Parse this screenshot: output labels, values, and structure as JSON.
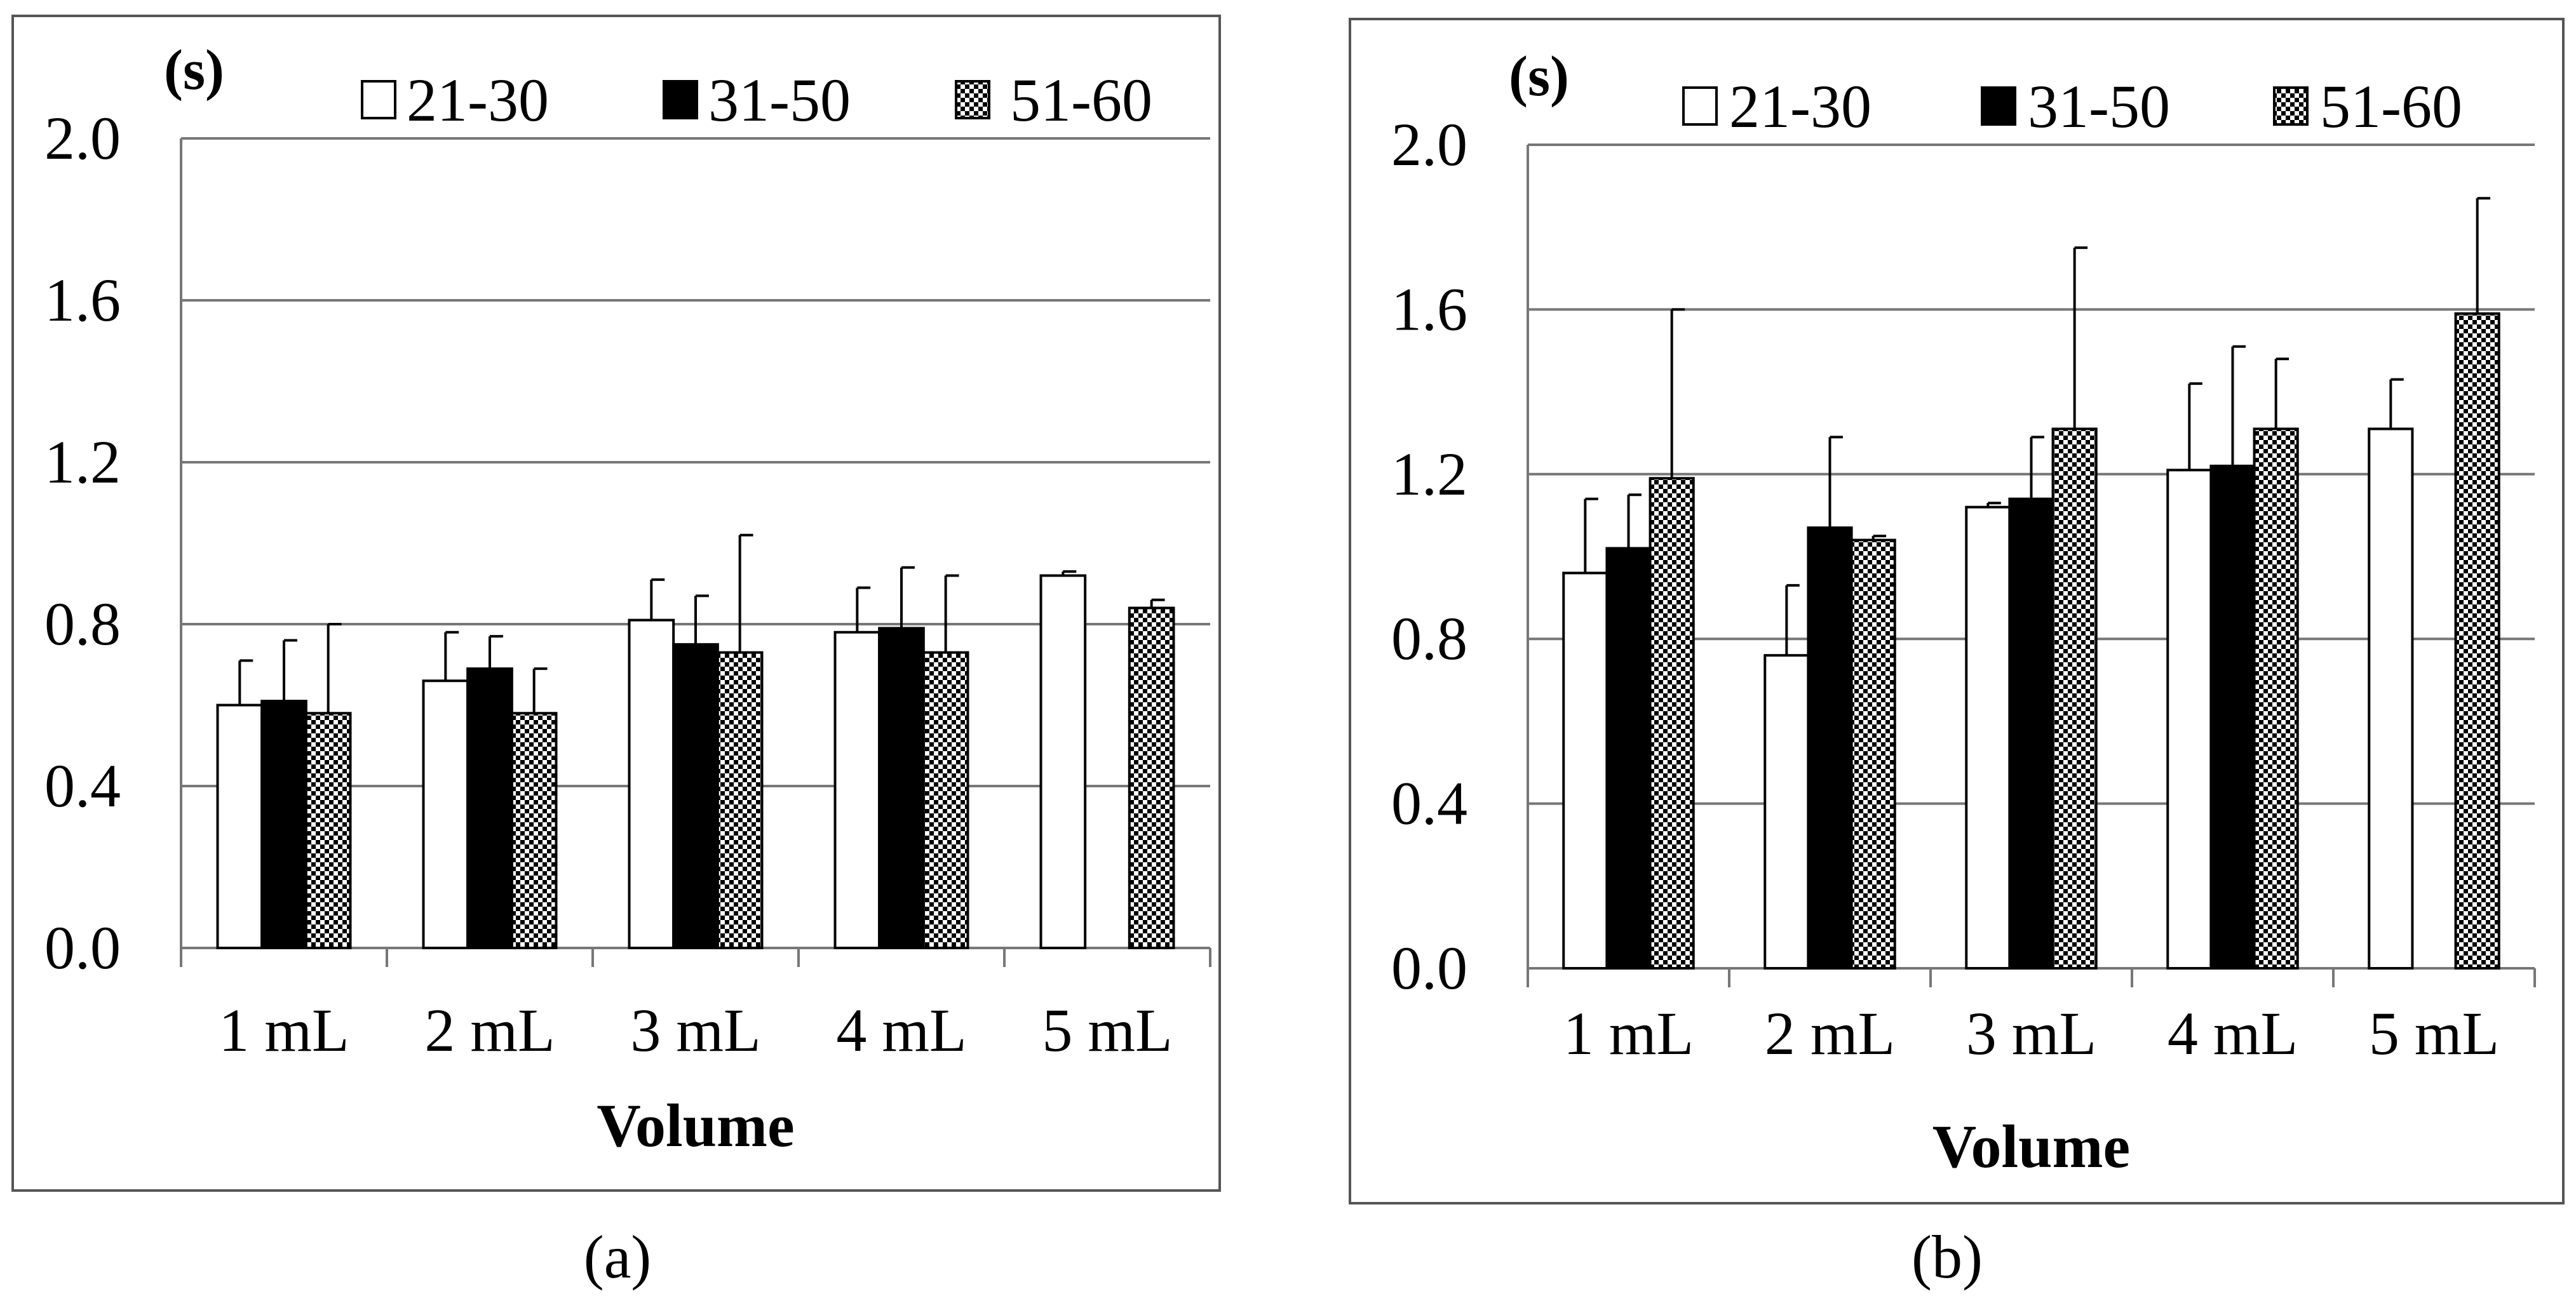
{
  "chart_data": [
    {
      "type": "bar",
      "panel": "(a)",
      "unit_label": "(s)",
      "xlabel": "Volume",
      "ylabel": "",
      "ylim": [
        0,
        2.0
      ],
      "yticks": [
        "0.0",
        "0.4",
        "0.8",
        "1.2",
        "1.6",
        "2.0"
      ],
      "categories": [
        "1 mL",
        "2 mL",
        "3 mL",
        "4 mL",
        "5 mL"
      ],
      "series": [
        {
          "name": "21-30",
          "pattern": "white",
          "values": [
            0.6,
            0.66,
            0.81,
            0.78,
            0.92
          ],
          "errors": [
            0.11,
            0.12,
            0.1,
            0.11,
            0.01
          ]
        },
        {
          "name": "31-50",
          "pattern": "black",
          "values": [
            0.61,
            0.69,
            0.75,
            0.79,
            0
          ],
          "errors": [
            0.15,
            0.08,
            0.12,
            0.15,
            0
          ]
        },
        {
          "name": "51-60",
          "pattern": "checker",
          "values": [
            0.58,
            0.58,
            0.73,
            0.73,
            0.84
          ],
          "errors": [
            0.22,
            0.11,
            0.29,
            0.19,
            0.02
          ]
        }
      ]
    },
    {
      "type": "bar",
      "panel": "(b)",
      "unit_label": "(s)",
      "xlabel": "Volume",
      "ylabel": "",
      "ylim": [
        0,
        2.0
      ],
      "yticks": [
        "0.0",
        "0.4",
        "0.8",
        "1.2",
        "1.6",
        "2.0"
      ],
      "categories": [
        "1 mL",
        "2 mL",
        "3 mL",
        "4 mL",
        "5 mL"
      ],
      "series": [
        {
          "name": "21-30",
          "pattern": "white",
          "values": [
            0.96,
            0.76,
            1.12,
            1.21,
            1.31
          ],
          "errors": [
            0.18,
            0.17,
            0.01,
            0.21,
            0.12
          ]
        },
        {
          "name": "31-50",
          "pattern": "black",
          "values": [
            1.02,
            1.07,
            1.14,
            1.22,
            0
          ],
          "errors": [
            0.13,
            0.22,
            0.15,
            0.29,
            0
          ]
        },
        {
          "name": "51-60",
          "pattern": "checker",
          "values": [
            1.19,
            1.04,
            1.31,
            1.31,
            1.59
          ],
          "errors": [
            0.41,
            0.01,
            0.44,
            0.17,
            0.28
          ]
        }
      ]
    }
  ],
  "captions": [
    "(a)",
    "(b)"
  ]
}
